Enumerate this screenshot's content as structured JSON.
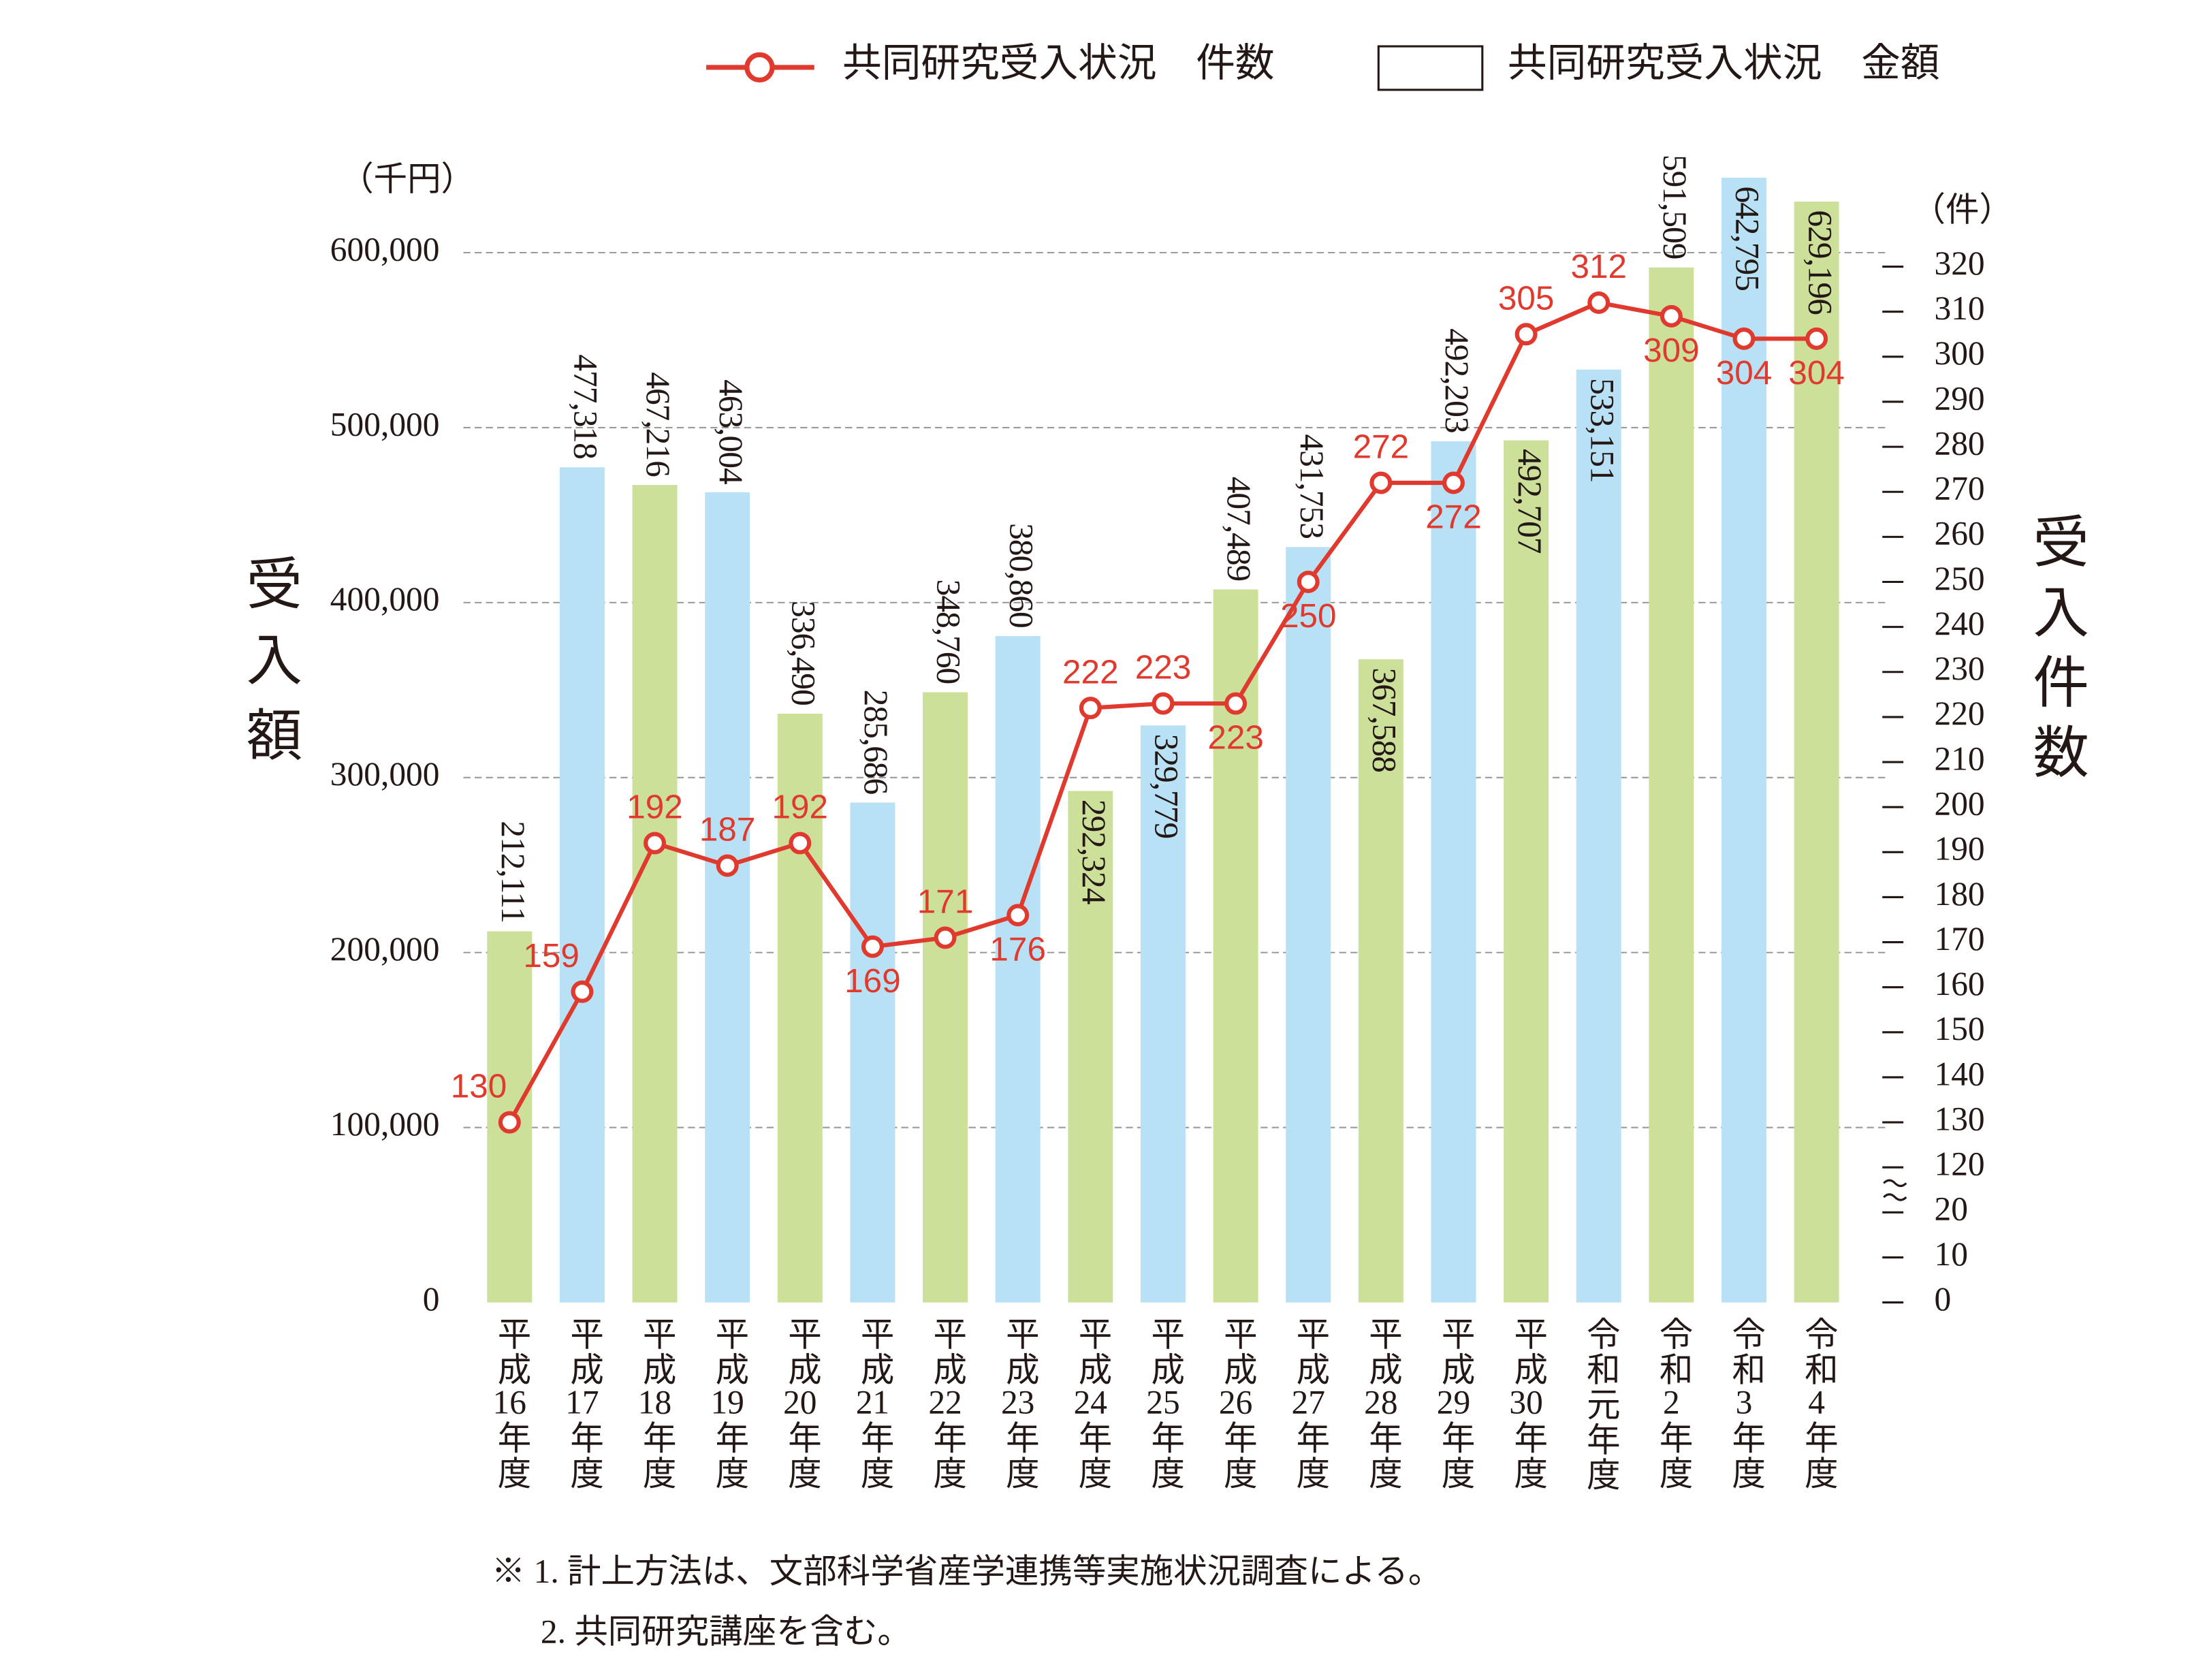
{
  "chart_data": {
    "type": "bar",
    "categories": [
      "平成16年度",
      "平成17年度",
      "平成18年度",
      "平成19年度",
      "平成20年度",
      "平成21年度",
      "平成22年度",
      "平成23年度",
      "平成24年度",
      "平成25年度",
      "平成26年度",
      "平成27年度",
      "平成28年度",
      "平成29年度",
      "平成30年度",
      "令和元年度",
      "令和2年度",
      "令和3年度",
      "令和4年度"
    ],
    "series": [
      {
        "name": "共同研究受入状況　金額",
        "type": "bar",
        "colors": [
          "#cde09a",
          "#b9e1f5",
          "#cde09a",
          "#b9e1f5",
          "#cde09a",
          "#b9e1f5",
          "#cde09a",
          "#b9e1f5",
          "#cde09a",
          "#b9e1f5",
          "#cde09a",
          "#b9e1f5",
          "#cde09a",
          "#b9e1f5",
          "#cde09a",
          "#b9e1f5",
          "#cde09a",
          "#b9e1f5",
          "#cde09a"
        ],
        "values": [
          212111,
          477318,
          467216,
          463004,
          336490,
          285686,
          348760,
          380860,
          292324,
          329779,
          407489,
          431753,
          367588,
          492203,
          492707,
          533151,
          591509,
          642795,
          629196
        ],
        "value_labels": [
          "212,111",
          "477,318",
          "467,216",
          "463,004",
          "336,490",
          "285,686",
          "348,760",
          "380,860",
          "292,324",
          "329,779",
          "407,489",
          "431,753",
          "367,588",
          "492,203",
          "492,707",
          "533,151",
          "591,509",
          "642,795",
          "629,196"
        ]
      },
      {
        "name": "共同研究受入状況　件数",
        "type": "line",
        "axis": "y2",
        "color": "#e03a2e",
        "values": [
          130,
          159,
          192,
          187,
          192,
          169,
          171,
          176,
          222,
          223,
          223,
          250,
          272,
          272,
          305,
          312,
          309,
          304,
          304
        ]
      }
    ],
    "y_label": "受入額",
    "y_unit": "（千円）",
    "y2_label": "受入件数",
    "y2_unit": "（件）",
    "ylim": [
      0,
      600000
    ],
    "yticks": [
      0,
      {
        "value": 100000,
        "label": "100,000"
      },
      {
        "value": 200000,
        "label": "200,000"
      },
      {
        "value": 300000,
        "label": "300,000"
      },
      {
        "value": 400000,
        "label": "400,000"
      },
      {
        "value": 500000,
        "label": "500,000"
      },
      {
        "value": 600000,
        "label": "600,000"
      }
    ],
    "y2lim": [
      0,
      320
    ],
    "y2ticks": [
      0,
      10,
      20,
      120,
      130,
      140,
      150,
      160,
      170,
      180,
      190,
      200,
      210,
      220,
      230,
      240,
      250,
      260,
      270,
      280,
      290,
      300,
      310,
      320
    ],
    "y2_break": [
      20,
      120
    ],
    "grid": true,
    "legend": "top-right",
    "notes": [
      "※ 1. 計上方法は、文部科学省産学連携等実施状況調査による。",
      "2. 共同研究講座を含む。"
    ]
  }
}
